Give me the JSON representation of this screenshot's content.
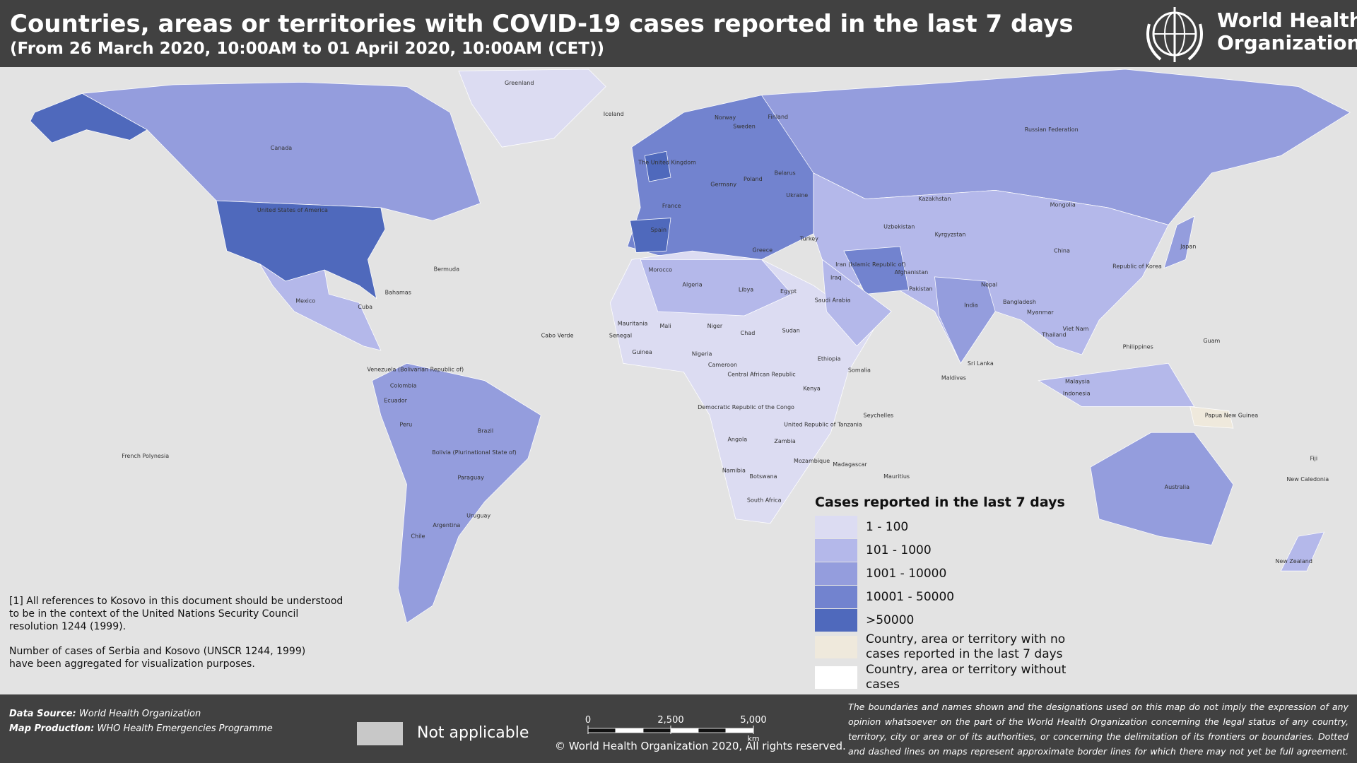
{
  "header": {
    "title": "Countries, areas or territories with COVID-19  cases reported in the last 7 days",
    "subtitle": "(From 26 March 2020, 10:00AM  to 01 April 2020, 10:00AM (CET))",
    "logo_lines": [
      "World Health",
      "Organization"
    ]
  },
  "map": {
    "labels": [
      "Greenland",
      "Iceland",
      "Canada",
      "United States of America",
      "Mexico",
      "Brazil",
      "Argentina",
      "Chile",
      "Peru",
      "Colombia",
      "Russian Federation",
      "China",
      "India",
      "Australia",
      "Kazakhstan",
      "Mongolia",
      "Algeria",
      "Libya",
      "Egypt",
      "Nigeria",
      "Chad",
      "Sudan",
      "Mali",
      "Niger",
      "Angola",
      "Namibia",
      "South Africa",
      "Madagascar",
      "Iran (Islamic Republic of)",
      "Saudi Arabia",
      "Turkey",
      "Ukraine",
      "Poland",
      "Germany",
      "France",
      "Spain",
      "The United Kingdom",
      "Norway",
      "Sweden",
      "Finland",
      "Japan",
      "Indonesia",
      "Papua New Guinea",
      "New Zealand",
      "Pakistan",
      "Afghanistan",
      "Bolivia (Plurinational State of)",
      "Venezuela (Bolivarian Republic of)",
      "Ecuador",
      "Paraguay",
      "Uruguay",
      "French Polynesia",
      "Democratic Republic of the Congo",
      "United Republic of Tanzania",
      "Ethiopia",
      "Kenya",
      "Somalia",
      "Zambia",
      "Mozambique",
      "Botswana",
      "Thailand",
      "Viet Nam",
      "Philippines",
      "Malaysia",
      "Republic of Korea",
      "Myanmar",
      "Cabo Verde",
      "Bermuda",
      "Cuba",
      "Bahamas",
      "Morocco",
      "Iraq",
      "Kyrgyzstan",
      "Uzbekistan",
      "Mauritania",
      "Fiji",
      "New Caledonia",
      "Sri Lanka",
      "Nepal",
      "Bangladesh",
      "Cameroon",
      "Central African Republic",
      "Guinea",
      "Senegal",
      "Greece",
      "Belarus",
      "Mauritius",
      "Seychelles",
      "Maldives",
      "Guam"
    ]
  },
  "legend": {
    "title": "Cases reported in the last 7 days",
    "items": [
      {
        "label": "1 - 100",
        "color": "#dcdcf2"
      },
      {
        "label": "101 - 1000",
        "color": "#b4b8ea"
      },
      {
        "label": "1001 - 10000",
        "color": "#949ddd"
      },
      {
        "label": "10001 - 50000",
        "color": "#7283cf"
      },
      {
        "label": ">50000",
        "color": "#4f69bc"
      },
      {
        "label": "Country, area or territory with no cases reported in the last 7 days",
        "color": "#efe9dc"
      },
      {
        "label": "Country, area or territory without cases",
        "color": "#ffffff"
      }
    ]
  },
  "notes": [
    [
      "[1] All references to Kosovo in this document should be understood",
      "to be in the context of the United Nations Security Council",
      "resolution 1244 (1999)."
    ],
    [
      "Number of cases of Serbia and Kosovo (UNSCR 1244, 1999)",
      "have been aggregated for visualization purposes."
    ]
  ],
  "footer": {
    "data_source": {
      "label": "Data Source:",
      "value": "World Health Organization"
    },
    "map_production": {
      "label": "Map Production:",
      "value": "WHO Health Emergencies Programme"
    },
    "not_applicable": {
      "label": "Not applicable",
      "color": "#c8c8c8"
    },
    "scale_bar": {
      "ticks": [
        0,
        {
          "value": 2500,
          "label": "2,500"
        },
        {
          "value": 5000,
          "label": "5,000"
        }
      ],
      "unit": "km"
    },
    "copyright": "© World Health Organization  2020, All rights reserved.",
    "disclaimer": "The boundaries and names shown and the designations used on this map do not imply the expression of any opinion whatsoever on the part of the World Health Organization concerning the legal status of any country, territory, city or area or of its authorities, or concerning the delimitation of its frontiers or boundaries. Dotted and dashed lines on maps represent approximate border lines for which there may not yet be full agreement."
  }
}
